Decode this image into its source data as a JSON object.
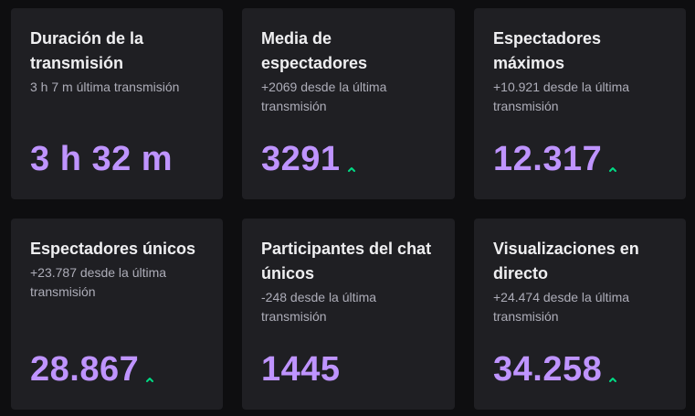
{
  "colors": {
    "background": "#0e0e10",
    "card": "#1f1f23",
    "title": "#efeff1",
    "subtitle": "#adadb8",
    "value": "#bf94ff",
    "trend_up": "#00db84"
  },
  "cards": [
    {
      "title": "Duración de la transmisión",
      "subtitle": "3 h 7 m última transmisión",
      "value": "3 h 32 m",
      "trend": "none"
    },
    {
      "title": "Media de espectadores",
      "subtitle": "+2069 desde la última transmisión",
      "value": "3291",
      "trend": "up",
      "trend_icon": "chevron-up-icon"
    },
    {
      "title": "Espectadores máximos",
      "subtitle": "+10.921 desde la última transmisión",
      "value": "12.317",
      "trend": "up",
      "trend_icon": "chevron-up-icon"
    },
    {
      "title": "Espectadores únicos",
      "subtitle": "+23.787 desde la última transmisión",
      "value": "28.867",
      "trend": "up",
      "trend_icon": "chevron-up-icon"
    },
    {
      "title": "Participantes del chat únicos",
      "subtitle": "-248 desde la última transmisión",
      "value": "1445",
      "trend": "none"
    },
    {
      "title": "Visualizaciones en directo",
      "subtitle": "+24.474 desde la última transmisión",
      "value": "34.258",
      "trend": "up",
      "trend_icon": "chevron-up-icon"
    }
  ]
}
